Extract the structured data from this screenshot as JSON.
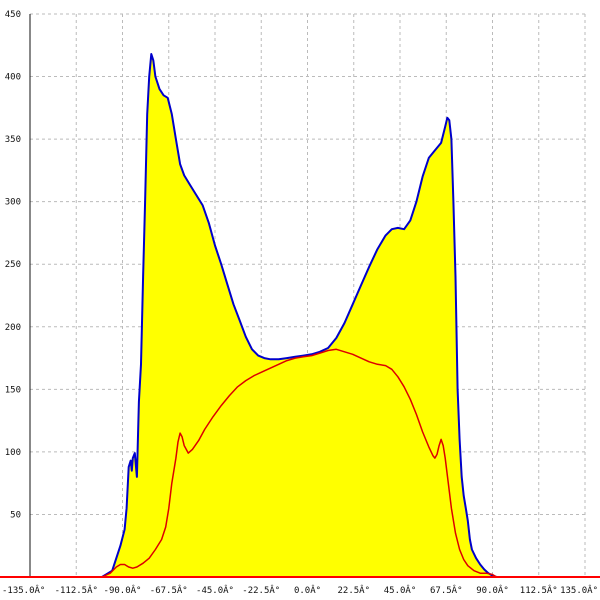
{
  "colors": {
    "background": "#ffffff",
    "fill": "#ffff00",
    "outer_line": "#0000cc",
    "inner_line": "#dd0000",
    "grid": "#bbbbbb",
    "axis": "#111111",
    "baseline": "#ff0000"
  },
  "chart_data": {
    "type": "area",
    "title": "",
    "xlabel": "",
    "ylabel": "",
    "xlim": [
      -135,
      135
    ],
    "ylim": [
      0,
      450
    ],
    "grid": true,
    "legend": "none",
    "x_ticks": [
      -135,
      -112.5,
      -90,
      -67.5,
      -45,
      -22.5,
      0,
      22.5,
      45,
      67.5,
      90,
      112.5,
      135
    ],
    "x_tick_labels": [
      "-135.0Â°",
      "-112.5Â°",
      "-90.0Â°",
      "-67.5Â°",
      "-45.0Â°",
      "-22.5Â°",
      "0.0Â°",
      "22.5Â°",
      "45.0Â°",
      "67.5Â°",
      "90.0Â°",
      "112.5Â°",
      "135.0Â°"
    ],
    "y_ticks": [
      50,
      100,
      150,
      200,
      250,
      300,
      350,
      400,
      450
    ],
    "y_tick_labels": [
      "50",
      "100",
      "150",
      "200",
      "250",
      "300",
      "350",
      "400",
      "450"
    ],
    "series": [
      {
        "role": "outer",
        "color": "#0000cc",
        "fill": "#ffff00",
        "points": [
          [
            -100,
            0
          ],
          [
            -97,
            3
          ],
          [
            -95,
            5
          ],
          [
            -93,
            15
          ],
          [
            -91,
            25
          ],
          [
            -89,
            38
          ],
          [
            -88,
            55
          ],
          [
            -87,
            88
          ],
          [
            -86,
            93
          ],
          [
            -85.5,
            85
          ],
          [
            -85,
            95
          ],
          [
            -84,
            99
          ],
          [
            -83,
            80
          ],
          [
            -82,
            140
          ],
          [
            -81,
            170
          ],
          [
            -80,
            240
          ],
          [
            -79,
            300
          ],
          [
            -78,
            370
          ],
          [
            -77,
            400
          ],
          [
            -76,
            418
          ],
          [
            -75,
            413
          ],
          [
            -74,
            400
          ],
          [
            -72,
            390
          ],
          [
            -70,
            385
          ],
          [
            -68,
            383
          ],
          [
            -66,
            370
          ],
          [
            -64,
            350
          ],
          [
            -62,
            330
          ],
          [
            -60,
            321
          ],
          [
            -57,
            313
          ],
          [
            -54,
            305
          ],
          [
            -51,
            297
          ],
          [
            -48,
            283
          ],
          [
            -45,
            265
          ],
          [
            -42,
            250
          ],
          [
            -39,
            234
          ],
          [
            -36,
            218
          ],
          [
            -33,
            205
          ],
          [
            -30,
            192
          ],
          [
            -27,
            182
          ],
          [
            -24,
            177
          ],
          [
            -21,
            175
          ],
          [
            -18,
            174
          ],
          [
            -14,
            174
          ],
          [
            -10,
            175
          ],
          [
            -6,
            176
          ],
          [
            -2,
            177
          ],
          [
            2,
            178
          ],
          [
            6,
            180
          ],
          [
            10,
            183
          ],
          [
            14,
            191
          ],
          [
            18,
            203
          ],
          [
            22,
            218
          ],
          [
            26,
            233
          ],
          [
            30,
            248
          ],
          [
            34,
            262
          ],
          [
            38,
            273
          ],
          [
            41,
            278
          ],
          [
            44,
            279
          ],
          [
            47,
            278
          ],
          [
            50,
            285
          ],
          [
            53,
            300
          ],
          [
            56,
            320
          ],
          [
            59,
            335
          ],
          [
            62,
            341
          ],
          [
            65,
            347
          ],
          [
            67,
            360
          ],
          [
            68,
            367
          ],
          [
            69,
            365
          ],
          [
            70,
            350
          ],
          [
            71,
            300
          ],
          [
            72,
            240
          ],
          [
            73,
            150
          ],
          [
            74,
            110
          ],
          [
            75,
            80
          ],
          [
            76,
            65
          ],
          [
            77,
            55
          ],
          [
            78,
            45
          ],
          [
            79,
            30
          ],
          [
            80,
            22
          ],
          [
            82,
            15
          ],
          [
            84,
            10
          ],
          [
            86,
            6
          ],
          [
            88,
            3
          ],
          [
            90,
            1
          ],
          [
            92,
            0
          ]
        ]
      },
      {
        "role": "inner",
        "color": "#dd0000",
        "points": [
          [
            -100,
            0
          ],
          [
            -96,
            3
          ],
          [
            -93,
            8
          ],
          [
            -91,
            10
          ],
          [
            -89,
            10
          ],
          [
            -87,
            8
          ],
          [
            -85,
            7
          ],
          [
            -83,
            8
          ],
          [
            -80,
            11
          ],
          [
            -77,
            15
          ],
          [
            -74,
            22
          ],
          [
            -71,
            30
          ],
          [
            -69,
            40
          ],
          [
            -67.5,
            55
          ],
          [
            -66,
            75
          ],
          [
            -64,
            95
          ],
          [
            -63,
            108
          ],
          [
            -62,
            115
          ],
          [
            -61,
            112
          ],
          [
            -60,
            105
          ],
          [
            -58,
            99
          ],
          [
            -56,
            102
          ],
          [
            -53,
            109
          ],
          [
            -50,
            118
          ],
          [
            -46,
            128
          ],
          [
            -42,
            137
          ],
          [
            -38,
            145
          ],
          [
            -34,
            152
          ],
          [
            -30,
            157
          ],
          [
            -26,
            161
          ],
          [
            -22,
            164
          ],
          [
            -18,
            167
          ],
          [
            -14,
            170
          ],
          [
            -10,
            173
          ],
          [
            -6,
            175
          ],
          [
            -2,
            176
          ],
          [
            2,
            177
          ],
          [
            6,
            179
          ],
          [
            10,
            181
          ],
          [
            14,
            182
          ],
          [
            18,
            180
          ],
          [
            22,
            178
          ],
          [
            26,
            175
          ],
          [
            30,
            172
          ],
          [
            34,
            170
          ],
          [
            38,
            169
          ],
          [
            41,
            166
          ],
          [
            44,
            160
          ],
          [
            47,
            152
          ],
          [
            50,
            142
          ],
          [
            53,
            130
          ],
          [
            56,
            116
          ],
          [
            59,
            104
          ],
          [
            61,
            97
          ],
          [
            62,
            95
          ],
          [
            63,
            98
          ],
          [
            64,
            105
          ],
          [
            65,
            110
          ],
          [
            66,
            105
          ],
          [
            67,
            95
          ],
          [
            68.5,
            75
          ],
          [
            70,
            55
          ],
          [
            72,
            35
          ],
          [
            74,
            22
          ],
          [
            76,
            14
          ],
          [
            78,
            9
          ],
          [
            81,
            5
          ],
          [
            84,
            3
          ],
          [
            87,
            3
          ],
          [
            90,
            2
          ],
          [
            92,
            0
          ]
        ]
      }
    ]
  }
}
